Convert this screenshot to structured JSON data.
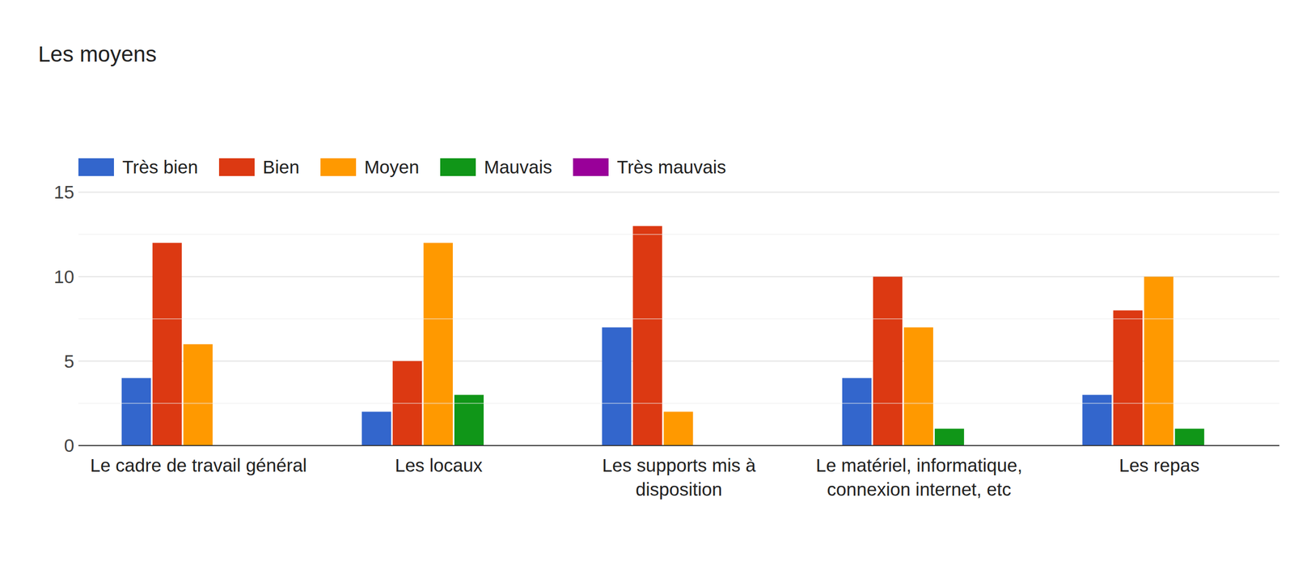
{
  "chart_data": {
    "type": "bar",
    "title": "Les moyens",
    "categories": [
      "Le cadre de travail général",
      "Les locaux",
      "Les supports mis à disposition",
      "Le matériel, informatique, connexion internet, etc",
      "Les repas"
    ],
    "series": [
      {
        "name": "Très bien",
        "color": "#3366cc",
        "values": [
          4,
          2,
          7,
          4,
          3
        ]
      },
      {
        "name": "Bien",
        "color": "#dc3912",
        "values": [
          12,
          5,
          13,
          10,
          8
        ]
      },
      {
        "name": "Moyen",
        "color": "#ff9900",
        "values": [
          6,
          12,
          2,
          7,
          10
        ]
      },
      {
        "name": "Mauvais",
        "color": "#109618",
        "values": [
          0,
          3,
          0,
          1,
          1
        ]
      },
      {
        "name": "Très mauvais",
        "color": "#990099",
        "values": [
          0,
          0,
          0,
          0,
          0
        ]
      }
    ],
    "ylim": [
      0,
      15
    ],
    "yticks": [
      0,
      5,
      10,
      15
    ],
    "grid": true
  }
}
